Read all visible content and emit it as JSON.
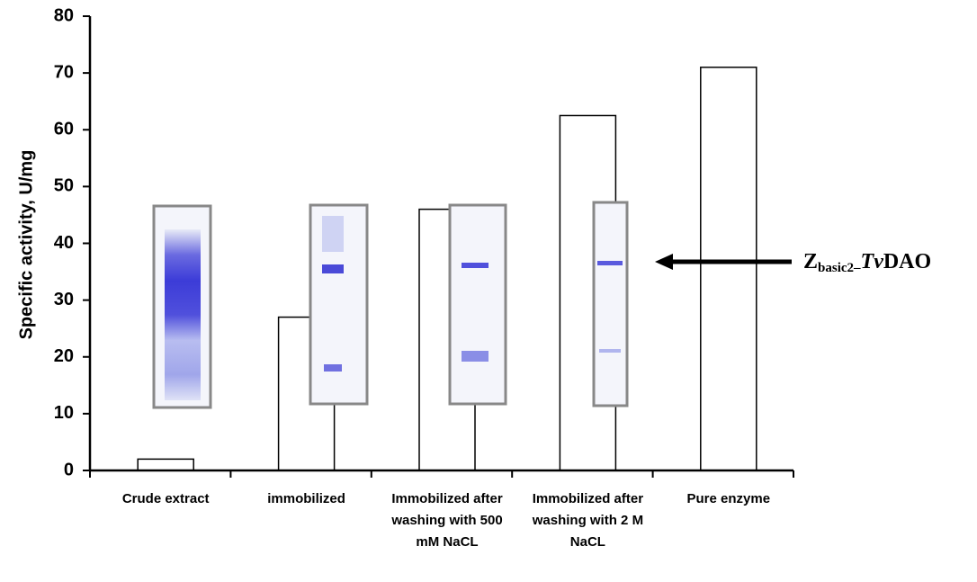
{
  "chart_data": {
    "type": "bar",
    "y_label": "Specific activity, U/mg",
    "categories": [
      "Crude extract",
      "immobilized",
      "Immobilized after washing with 500 mM NaCL",
      "Immobilized after washing with 2 M NaCL",
      "Pure enzyme"
    ],
    "values": [
      2,
      27,
      46,
      62.5,
      71
    ],
    "color": "#ffffff",
    "ylim": [
      0,
      80
    ],
    "yticks": [
      0,
      10,
      20,
      30,
      40,
      50,
      60,
      70,
      80
    ],
    "annotation": [
      "Z",
      "basic2–",
      "Tv",
      "DAO"
    ]
  }
}
